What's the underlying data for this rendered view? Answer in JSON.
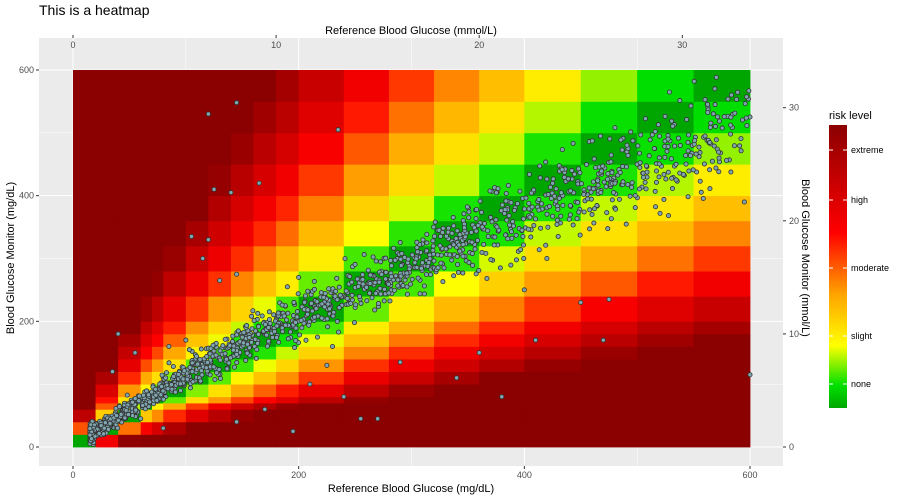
{
  "chart_data": {
    "type": "heatmap",
    "title": "This is a heatmap",
    "x_bottom": {
      "label": "Reference Blood Glucose (mg/dL)",
      "ticks": [
        "0",
        "200",
        "400",
        "600"
      ],
      "range": [
        0,
        600
      ]
    },
    "x_top": {
      "label": "Reference Blood Glucose (mmol/L)",
      "ticks": [
        "0",
        "10",
        "20",
        "30"
      ]
    },
    "y_left": {
      "label": "Blood Glucose Monitor (mg/dL)",
      "ticks": [
        "0",
        "200",
        "400",
        "600"
      ],
      "range": [
        0,
        600
      ]
    },
    "y_right": {
      "label": "Blood Glucose Monitor (mmol/L)",
      "ticks": [
        "0",
        "10",
        "20",
        "30"
      ]
    },
    "legend": {
      "title": "risk level",
      "placement": "right",
      "levels": [
        "none",
        "slight",
        "moderate",
        "high",
        "extreme"
      ],
      "colors": [
        "#00a600",
        "#00e000",
        "#ffff00",
        "#ffa500",
        "#ff0000",
        "#8b0000"
      ]
    },
    "grid": true,
    "panel_background": "#ebebeb",
    "point_color": "#7fa7b1",
    "point_outline": "#333333",
    "bins": [
      0,
      20,
      40,
      60,
      70,
      80,
      100,
      120,
      140,
      160,
      180,
      200,
      240,
      280,
      320,
      360,
      400,
      450,
      500,
      550,
      600
    ],
    "scatter_trend": [
      [
        15,
        20
      ],
      [
        50,
        60
      ],
      [
        100,
        115
      ],
      [
        150,
        165
      ],
      [
        200,
        210
      ],
      [
        250,
        250
      ],
      [
        300,
        285
      ],
      [
        350,
        330
      ],
      [
        400,
        375
      ],
      [
        450,
        405
      ],
      [
        500,
        440
      ],
      [
        550,
        480
      ],
      [
        600,
        510
      ]
    ],
    "scatter_outliers": [
      [
        120,
        530
      ],
      [
        145,
        548
      ],
      [
        235,
        505
      ],
      [
        165,
        420
      ],
      [
        125,
        410
      ],
      [
        140,
        405
      ],
      [
        105,
        335
      ],
      [
        120,
        330
      ],
      [
        115,
        300
      ],
      [
        145,
        275
      ],
      [
        130,
        265
      ],
      [
        200,
        270
      ],
      [
        190,
        255
      ],
      [
        270,
        45
      ],
      [
        255,
        45
      ],
      [
        400,
        250
      ],
      [
        420,
        300
      ],
      [
        430,
        335
      ],
      [
        460,
        370
      ],
      [
        450,
        230
      ],
      [
        475,
        235
      ],
      [
        600,
        115
      ],
      [
        595,
        390
      ],
      [
        340,
        110
      ],
      [
        360,
        150
      ],
      [
        380,
        80
      ],
      [
        410,
        170
      ],
      [
        470,
        170
      ],
      [
        290,
        135
      ],
      [
        240,
        80
      ],
      [
        210,
        100
      ],
      [
        225,
        130
      ],
      [
        195,
        25
      ],
      [
        230,
        160
      ],
      [
        85,
        160
      ],
      [
        100,
        170
      ],
      [
        170,
        60
      ],
      [
        145,
        40
      ],
      [
        80,
        30
      ],
      [
        60,
        45
      ],
      [
        40,
        180
      ],
      [
        55,
        150
      ],
      [
        35,
        120
      ]
    ]
  }
}
